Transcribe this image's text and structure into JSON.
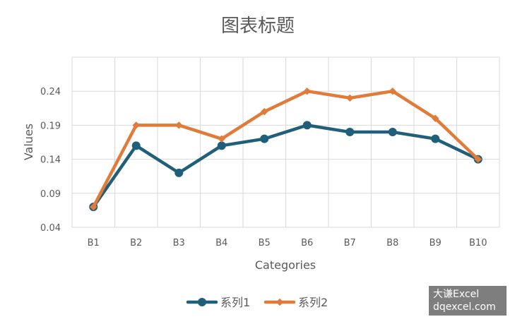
{
  "chart_data": {
    "type": "line",
    "title": "图表标题",
    "xlabel": "Categories",
    "ylabel": "Values",
    "categories": [
      "B1",
      "B2",
      "B3",
      "B4",
      "B5",
      "B6",
      "B7",
      "B8",
      "B9",
      "B10"
    ],
    "ylim": [
      0.04,
      0.29
    ],
    "yticks": [
      "0.04",
      "0.09",
      "0.14",
      "0.19",
      "0.24"
    ],
    "grid": true,
    "legend_position": "bottom",
    "series": [
      {
        "name": "系列1",
        "color": "#1f5f7a",
        "marker": "circle",
        "values": [
          0.07,
          0.16,
          0.12,
          0.16,
          0.17,
          0.19,
          0.18,
          0.18,
          0.17,
          0.14
        ]
      },
      {
        "name": "系列2",
        "color": "#e07b39",
        "marker": "diamond",
        "values": [
          0.07,
          0.19,
          0.19,
          0.17,
          0.21,
          0.24,
          0.23,
          0.24,
          0.2,
          0.14
        ]
      }
    ]
  },
  "watermark": {
    "line1": "大谦Excel",
    "line2": "dqexcel.com"
  }
}
